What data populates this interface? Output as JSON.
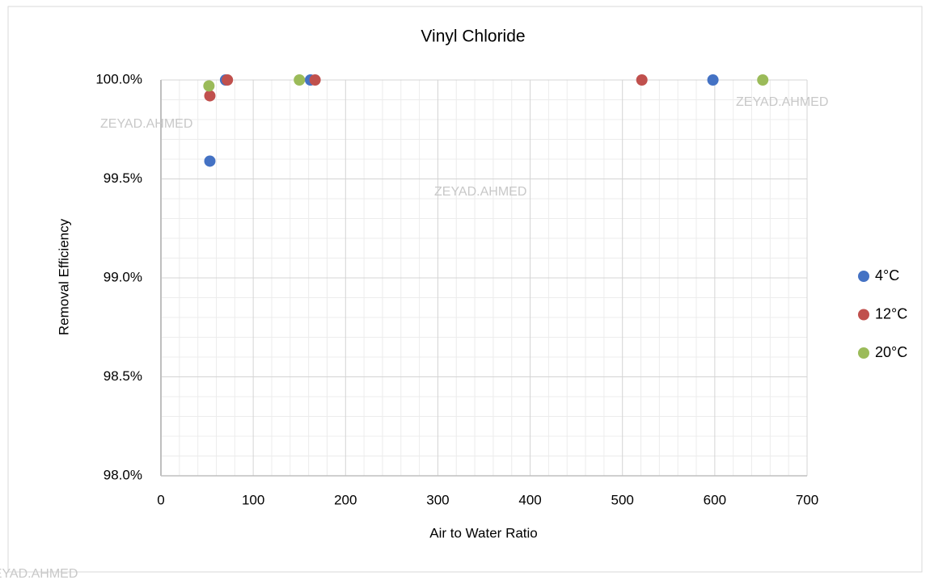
{
  "chart_data": {
    "type": "scatter",
    "title": "Vinyl Chloride",
    "x_label": "Air to Water Ratio",
    "y_label": "Removal Efficiency",
    "series": [
      {
        "name": "4°C",
        "color": "#4472c4",
        "x": [
          53,
          70,
          162,
          598
        ],
        "values": [
          99.59,
          100,
          100,
          100
        ]
      },
      {
        "name": "12°C",
        "color": "#c0504d",
        "x": [
          53,
          72,
          167,
          521
        ],
        "values": [
          99.92,
          100,
          100,
          100
        ]
      },
      {
        "name": "20°C",
        "color": "#9bbb59",
        "x": [
          52,
          150,
          652
        ],
        "values": [
          99.97,
          100,
          100
        ]
      }
    ],
    "xlim": [
      0,
      700
    ],
    "xticks": [
      0,
      100,
      200,
      300,
      400,
      500,
      600,
      700
    ],
    "ylim": [
      98,
      100
    ],
    "yticks": [
      {
        "value": 98,
        "label": "98.0%"
      },
      {
        "value": 98.5,
        "label": "98.5%"
      },
      {
        "value": 99,
        "label": "99.0%"
      },
      {
        "value": 99.5,
        "label": "99.5%"
      },
      {
        "value": 100,
        "label": "100.0%"
      }
    ],
    "grid": true,
    "minor_grid": true,
    "legend": "right",
    "watermarks": [
      "ZEYAD.AHMED",
      "ZEYAD.AHMED",
      "ZEYAD.AHMED",
      "ZEYAD.AHMED"
    ]
  }
}
